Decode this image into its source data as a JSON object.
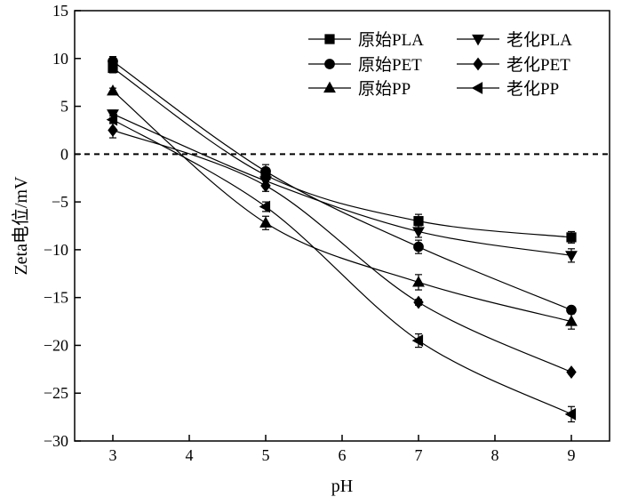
{
  "chart_data": {
    "type": "line",
    "xlabel": "pH",
    "ylabel": "Zeta电位/mV",
    "xlim": [
      2.5,
      9.5
    ],
    "ylim": [
      -30,
      15
    ],
    "x_ticks": [
      3,
      4,
      5,
      6,
      7,
      8,
      9
    ],
    "y_ticks": [
      15,
      10,
      5,
      0,
      -5,
      -10,
      -15,
      -20,
      -25,
      -30
    ],
    "grid": false,
    "legend_position": "top-right",
    "reference_line": {
      "y": 0,
      "style": "dashed"
    },
    "x": [
      3,
      5,
      7,
      9
    ],
    "series": [
      {
        "name": "原始PLA",
        "marker": "square",
        "values": [
          9.0,
          -2.2,
          -7.0,
          -8.7
        ],
        "errors": [
          0.5,
          0.6,
          0.7,
          0.6
        ]
      },
      {
        "name": "原始PET",
        "marker": "circle",
        "values": [
          9.7,
          -1.8,
          -9.7,
          -16.3
        ],
        "errors": [
          0.5,
          0.7,
          0.7,
          0.3
        ]
      },
      {
        "name": "原始PP",
        "marker": "triangle-up",
        "values": [
          6.6,
          -7.2,
          -13.4,
          -17.5
        ],
        "errors": [
          0.3,
          0.7,
          0.8,
          0.8
        ]
      },
      {
        "name": "老化PLA",
        "marker": "triangle-down",
        "values": [
          4.2,
          -2.8,
          -8.1,
          -10.6
        ],
        "errors": [
          0.4,
          0.5,
          0.6,
          0.7
        ]
      },
      {
        "name": "老化PET",
        "marker": "diamond",
        "values": [
          2.5,
          -3.3,
          -15.5,
          -22.8
        ],
        "errors": [
          0.8,
          0.6,
          0.3,
          0.2
        ]
      },
      {
        "name": "老化PP",
        "marker": "triangle-left",
        "values": [
          3.6,
          -5.5,
          -19.5,
          -27.2
        ],
        "errors": [
          0.4,
          0.5,
          0.7,
          0.8
        ]
      }
    ]
  }
}
